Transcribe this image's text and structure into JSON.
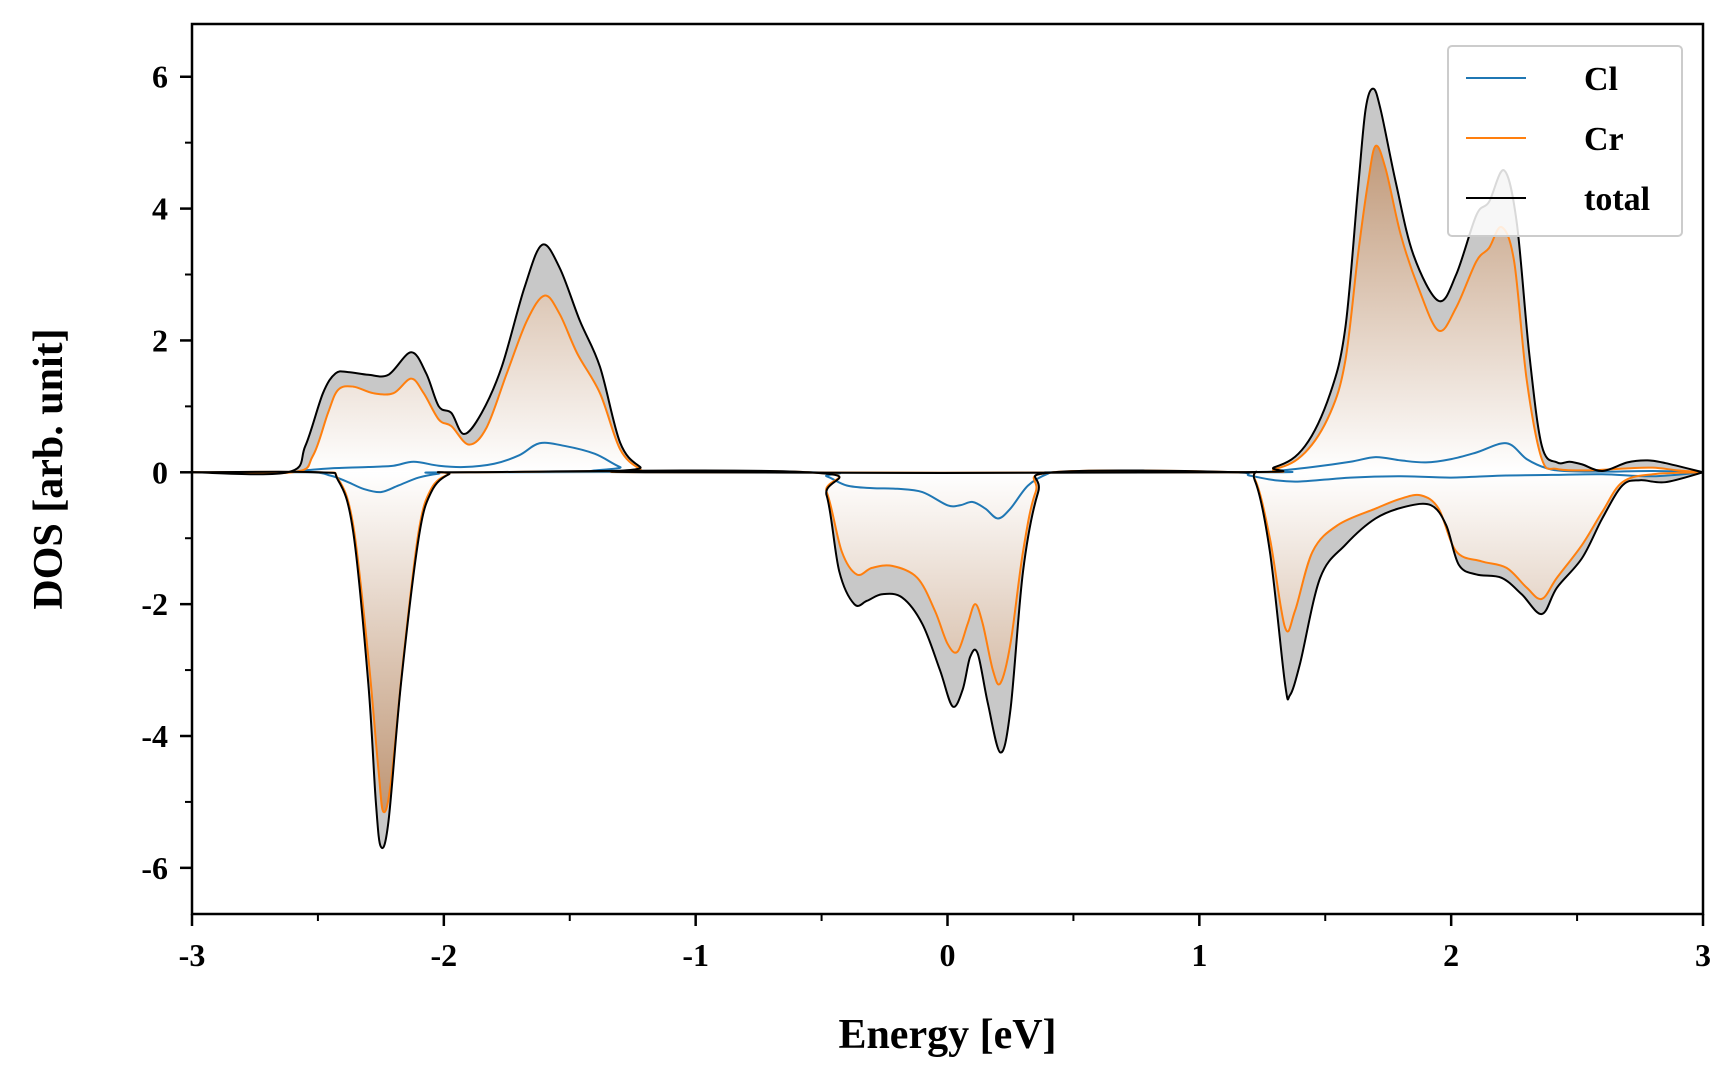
{
  "chart_data": {
    "type": "line",
    "title": "",
    "xlabel": "Energy [eV]",
    "ylabel": "DOS [arb. unit]",
    "xlim": [
      -3,
      3
    ],
    "ylim": [
      -6.7,
      6.8
    ],
    "grid": false,
    "legend_position": "top-right",
    "x_major_ticks": [
      -3,
      -2,
      -1,
      0,
      1,
      2,
      3
    ],
    "x_tick_labels": [
      "-3",
      "-2",
      "-1",
      "0",
      "1",
      "2",
      "3"
    ],
    "x_minor_ticks": [
      -2.5,
      -1.5,
      -0.5,
      0.5,
      1.5,
      2.5
    ],
    "y_major_ticks": [
      -6,
      -4,
      -2,
      0,
      2,
      4,
      6
    ],
    "y_tick_labels": [
      "-6",
      "-4",
      "-2",
      "0",
      "2",
      "4",
      "6"
    ],
    "y_minor_ticks": [
      -5,
      -3,
      -1,
      1,
      3,
      5
    ],
    "fill_colors": {
      "top": "#b3835c",
      "bottom": "#ffffff",
      "gray": "#c8c8c8"
    },
    "series": [
      {
        "name": "Cl",
        "color": "#1f77b4",
        "up": [
          [
            -3,
            0
          ],
          [
            -2.65,
            0
          ],
          [
            -2.55,
            0.03
          ],
          [
            -2.45,
            0.06
          ],
          [
            -2.3,
            0.08
          ],
          [
            -2.2,
            0.1
          ],
          [
            -2.12,
            0.16
          ],
          [
            -2.02,
            0.1
          ],
          [
            -1.92,
            0.08
          ],
          [
            -1.8,
            0.13
          ],
          [
            -1.7,
            0.26
          ],
          [
            -1.62,
            0.44
          ],
          [
            -1.52,
            0.4
          ],
          [
            -1.4,
            0.28
          ],
          [
            -1.3,
            0.08
          ],
          [
            -1.22,
            0
          ],
          [
            1.15,
            0
          ],
          [
            1.3,
            0.02
          ],
          [
            1.45,
            0.08
          ],
          [
            1.6,
            0.16
          ],
          [
            1.7,
            0.23
          ],
          [
            1.8,
            0.18
          ],
          [
            1.9,
            0.15
          ],
          [
            2.0,
            0.2
          ],
          [
            2.1,
            0.3
          ],
          [
            2.22,
            0.44
          ],
          [
            2.3,
            0.2
          ],
          [
            2.38,
            0.06
          ],
          [
            2.45,
            0.02
          ],
          [
            2.6,
            0.01
          ],
          [
            2.8,
            0.02
          ],
          [
            3,
            0
          ]
        ],
        "down": [
          [
            -3,
            0
          ],
          [
            -2.55,
            0
          ],
          [
            -2.45,
            -0.05
          ],
          [
            -2.38,
            -0.15
          ],
          [
            -2.32,
            -0.25
          ],
          [
            -2.25,
            -0.3
          ],
          [
            -2.18,
            -0.2
          ],
          [
            -2.1,
            -0.08
          ],
          [
            -2.02,
            -0.02
          ],
          [
            -1.95,
            0
          ],
          [
            -0.55,
            0
          ],
          [
            -0.48,
            -0.06
          ],
          [
            -0.4,
            -0.2
          ],
          [
            -0.3,
            -0.24
          ],
          [
            -0.2,
            -0.25
          ],
          [
            -0.1,
            -0.3
          ],
          [
            0.0,
            -0.5
          ],
          [
            0.05,
            -0.5
          ],
          [
            0.1,
            -0.45
          ],
          [
            0.15,
            -0.55
          ],
          [
            0.2,
            -0.7
          ],
          [
            0.25,
            -0.55
          ],
          [
            0.32,
            -0.2
          ],
          [
            0.4,
            -0.02
          ],
          [
            0.45,
            0
          ],
          [
            1.12,
            0
          ],
          [
            1.2,
            -0.05
          ],
          [
            1.3,
            -0.12
          ],
          [
            1.4,
            -0.14
          ],
          [
            1.6,
            -0.08
          ],
          [
            1.8,
            -0.06
          ],
          [
            2.0,
            -0.08
          ],
          [
            2.2,
            -0.05
          ],
          [
            2.4,
            -0.04
          ],
          [
            2.6,
            -0.03
          ],
          [
            2.8,
            -0.06
          ],
          [
            3,
            0
          ]
        ]
      },
      {
        "name": "Cr",
        "color": "#ff7f0e",
        "up": [
          [
            -3,
            0
          ],
          [
            -2.6,
            0
          ],
          [
            -2.52,
            0.25
          ],
          [
            -2.46,
            0.9
          ],
          [
            -2.42,
            1.25
          ],
          [
            -2.36,
            1.3
          ],
          [
            -2.28,
            1.2
          ],
          [
            -2.2,
            1.2
          ],
          [
            -2.13,
            1.42
          ],
          [
            -2.08,
            1.2
          ],
          [
            -2.02,
            0.8
          ],
          [
            -1.97,
            0.7
          ],
          [
            -1.9,
            0.42
          ],
          [
            -1.83,
            0.68
          ],
          [
            -1.75,
            1.5
          ],
          [
            -1.67,
            2.3
          ],
          [
            -1.6,
            2.68
          ],
          [
            -1.54,
            2.4
          ],
          [
            -1.47,
            1.8
          ],
          [
            -1.38,
            1.2
          ],
          [
            -1.3,
            0.35
          ],
          [
            -1.22,
            0.05
          ],
          [
            -1.15,
            0
          ],
          [
            1.1,
            0
          ],
          [
            1.3,
            0.05
          ],
          [
            1.42,
            0.3
          ],
          [
            1.52,
            0.9
          ],
          [
            1.58,
            1.7
          ],
          [
            1.63,
            3.3
          ],
          [
            1.67,
            4.4
          ],
          [
            1.7,
            4.95
          ],
          [
            1.74,
            4.6
          ],
          [
            1.8,
            3.6
          ],
          [
            1.87,
            2.8
          ],
          [
            1.95,
            2.15
          ],
          [
            2.02,
            2.5
          ],
          [
            2.1,
            3.2
          ],
          [
            2.15,
            3.4
          ],
          [
            2.2,
            3.72
          ],
          [
            2.25,
            3.2
          ],
          [
            2.3,
            1.4
          ],
          [
            2.36,
            0.2
          ],
          [
            2.42,
            0.05
          ],
          [
            2.55,
            0.03
          ],
          [
            2.7,
            0.06
          ],
          [
            2.8,
            0.07
          ],
          [
            2.9,
            0.03
          ],
          [
            3,
            0
          ]
        ],
        "down": [
          [
            -3,
            0
          ],
          [
            -2.5,
            0
          ],
          [
            -2.42,
            -0.1
          ],
          [
            -2.36,
            -0.8
          ],
          [
            -2.3,
            -2.8
          ],
          [
            -2.26,
            -4.5
          ],
          [
            -2.24,
            -5.15
          ],
          [
            -2.21,
            -4.7
          ],
          [
            -2.16,
            -2.8
          ],
          [
            -2.1,
            -0.9
          ],
          [
            -2.05,
            -0.25
          ],
          [
            -1.98,
            -0.03
          ],
          [
            -1.9,
            0
          ],
          [
            -0.55,
            0
          ],
          [
            -0.48,
            -0.3
          ],
          [
            -0.42,
            -1.2
          ],
          [
            -0.36,
            -1.55
          ],
          [
            -0.3,
            -1.45
          ],
          [
            -0.22,
            -1.42
          ],
          [
            -0.12,
            -1.6
          ],
          [
            -0.05,
            -2.1
          ],
          [
            0.0,
            -2.6
          ],
          [
            0.04,
            -2.72
          ],
          [
            0.08,
            -2.3
          ],
          [
            0.11,
            -2.0
          ],
          [
            0.14,
            -2.3
          ],
          [
            0.18,
            -3.0
          ],
          [
            0.21,
            -3.2
          ],
          [
            0.25,
            -2.6
          ],
          [
            0.3,
            -1.2
          ],
          [
            0.35,
            -0.3
          ],
          [
            0.42,
            0
          ],
          [
            1.15,
            0
          ],
          [
            1.22,
            -0.1
          ],
          [
            1.28,
            -1.0
          ],
          [
            1.34,
            -2.35
          ],
          [
            1.38,
            -2.1
          ],
          [
            1.45,
            -1.2
          ],
          [
            1.55,
            -0.8
          ],
          [
            1.7,
            -0.55
          ],
          [
            1.8,
            -0.4
          ],
          [
            1.88,
            -0.35
          ],
          [
            1.95,
            -0.55
          ],
          [
            2.02,
            -1.2
          ],
          [
            2.12,
            -1.35
          ],
          [
            2.22,
            -1.45
          ],
          [
            2.3,
            -1.75
          ],
          [
            2.36,
            -1.92
          ],
          [
            2.42,
            -1.6
          ],
          [
            2.52,
            -1.1
          ],
          [
            2.6,
            -0.6
          ],
          [
            2.68,
            -0.15
          ],
          [
            2.8,
            -0.03
          ],
          [
            3,
            0
          ]
        ]
      },
      {
        "name": "total",
        "color": "#000000",
        "up": [
          [
            -3,
            0
          ],
          [
            -2.62,
            0
          ],
          [
            -2.55,
            0.4
          ],
          [
            -2.48,
            1.2
          ],
          [
            -2.43,
            1.5
          ],
          [
            -2.38,
            1.52
          ],
          [
            -2.3,
            1.48
          ],
          [
            -2.22,
            1.48
          ],
          [
            -2.13,
            1.82
          ],
          [
            -2.07,
            1.5
          ],
          [
            -2.02,
            1.0
          ],
          [
            -1.97,
            0.9
          ],
          [
            -1.92,
            0.58
          ],
          [
            -1.85,
            0.9
          ],
          [
            -1.77,
            1.6
          ],
          [
            -1.68,
            2.8
          ],
          [
            -1.61,
            3.45
          ],
          [
            -1.54,
            3.1
          ],
          [
            -1.46,
            2.3
          ],
          [
            -1.38,
            1.6
          ],
          [
            -1.3,
            0.45
          ],
          [
            -1.22,
            0.08
          ],
          [
            -1.15,
            0
          ],
          [
            1.1,
            0
          ],
          [
            1.3,
            0.08
          ],
          [
            1.42,
            0.4
          ],
          [
            1.52,
            1.2
          ],
          [
            1.58,
            2.2
          ],
          [
            1.63,
            4.3
          ],
          [
            1.66,
            5.5
          ],
          [
            1.69,
            5.82
          ],
          [
            1.72,
            5.5
          ],
          [
            1.78,
            4.4
          ],
          [
            1.85,
            3.3
          ],
          [
            1.95,
            2.6
          ],
          [
            2.02,
            3.0
          ],
          [
            2.1,
            3.9
          ],
          [
            2.15,
            4.1
          ],
          [
            2.21,
            4.58
          ],
          [
            2.26,
            3.8
          ],
          [
            2.31,
            1.8
          ],
          [
            2.36,
            0.4
          ],
          [
            2.42,
            0.15
          ],
          [
            2.47,
            0.16
          ],
          [
            2.52,
            0.12
          ],
          [
            2.6,
            0.02
          ],
          [
            2.7,
            0.15
          ],
          [
            2.78,
            0.18
          ],
          [
            2.85,
            0.14
          ],
          [
            3,
            0
          ]
        ],
        "down": [
          [
            -3,
            0
          ],
          [
            -2.5,
            0
          ],
          [
            -2.42,
            -0.12
          ],
          [
            -2.36,
            -0.9
          ],
          [
            -2.3,
            -3.2
          ],
          [
            -2.27,
            -5.0
          ],
          [
            -2.25,
            -5.68
          ],
          [
            -2.22,
            -5.3
          ],
          [
            -2.17,
            -3.2
          ],
          [
            -2.1,
            -1.0
          ],
          [
            -2.05,
            -0.3
          ],
          [
            -1.98,
            -0.03
          ],
          [
            -1.9,
            0
          ],
          [
            -0.55,
            0
          ],
          [
            -0.48,
            -0.35
          ],
          [
            -0.43,
            -1.5
          ],
          [
            -0.37,
            -2.0
          ],
          [
            -0.32,
            -1.95
          ],
          [
            -0.26,
            -1.85
          ],
          [
            -0.18,
            -1.9
          ],
          [
            -0.1,
            -2.3
          ],
          [
            -0.03,
            -3.0
          ],
          [
            0.02,
            -3.55
          ],
          [
            0.06,
            -3.3
          ],
          [
            0.09,
            -2.8
          ],
          [
            0.12,
            -2.75
          ],
          [
            0.16,
            -3.5
          ],
          [
            0.21,
            -4.25
          ],
          [
            0.25,
            -3.6
          ],
          [
            0.3,
            -1.5
          ],
          [
            0.36,
            -0.3
          ],
          [
            0.42,
            0
          ],
          [
            1.15,
            0
          ],
          [
            1.22,
            -0.12
          ],
          [
            1.28,
            -1.2
          ],
          [
            1.34,
            -3.2
          ],
          [
            1.36,
            -3.38
          ],
          [
            1.4,
            -2.9
          ],
          [
            1.48,
            -1.6
          ],
          [
            1.58,
            -1.1
          ],
          [
            1.7,
            -0.7
          ],
          [
            1.82,
            -0.52
          ],
          [
            1.92,
            -0.5
          ],
          [
            1.98,
            -0.8
          ],
          [
            2.03,
            -1.4
          ],
          [
            2.1,
            -1.55
          ],
          [
            2.2,
            -1.6
          ],
          [
            2.28,
            -1.85
          ],
          [
            2.36,
            -2.15
          ],
          [
            2.42,
            -1.75
          ],
          [
            2.52,
            -1.3
          ],
          [
            2.6,
            -0.7
          ],
          [
            2.68,
            -0.2
          ],
          [
            2.75,
            -0.12
          ],
          [
            2.85,
            -0.15
          ],
          [
            3,
            0
          ]
        ]
      }
    ]
  }
}
